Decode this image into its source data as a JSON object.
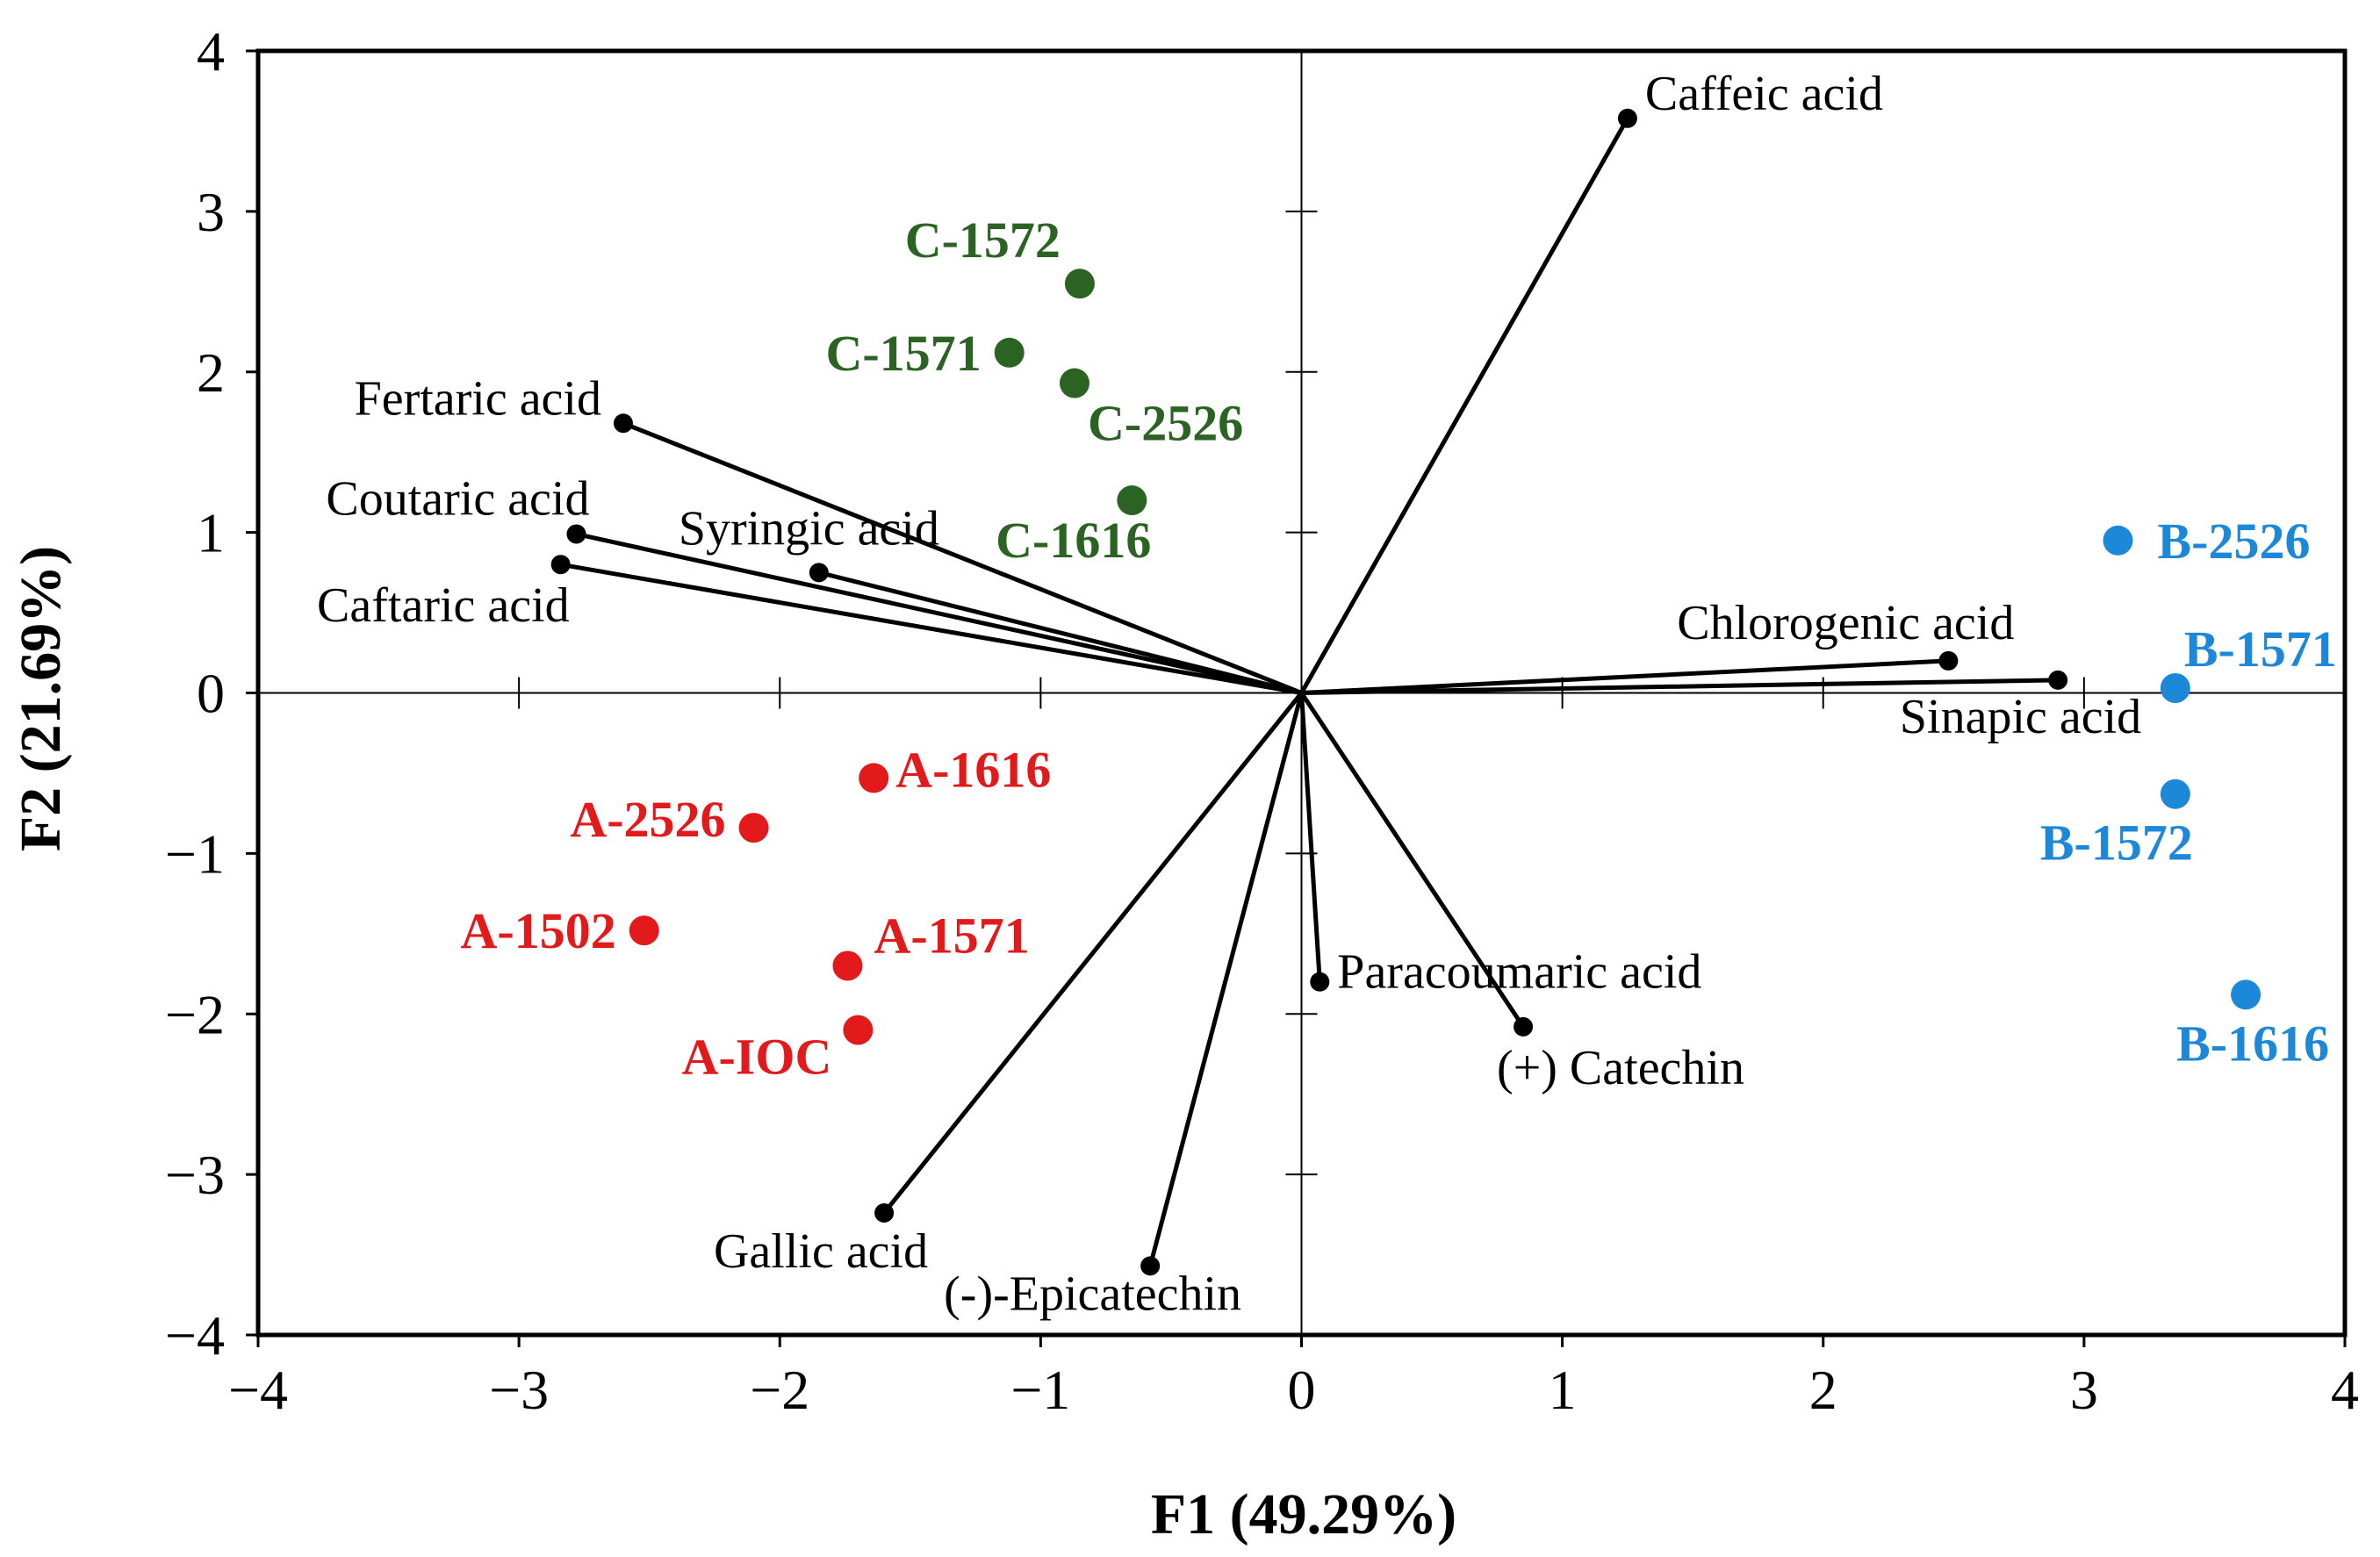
{
  "chart_data": {
    "type": "scatter",
    "subtype": "pca-biplot",
    "xlabel": "F1 (49.29%)",
    "ylabel": "F2 (21.69%)",
    "xlim": [
      -4,
      4
    ],
    "ylim": [
      -4,
      4
    ],
    "x_ticks": [
      "−4",
      "−3",
      "−2",
      "−1",
      "0",
      "1",
      "2",
      "3",
      "4"
    ],
    "y_ticks": [
      "4",
      "3",
      "2",
      "1",
      "0",
      "−1",
      "−2",
      "−3",
      "−4"
    ],
    "grid": false,
    "zero_lines": true,
    "variables": [
      {
        "name": "Caffeic acid",
        "x": 1.25,
        "y": 3.58
      },
      {
        "name": "Fertaric acid",
        "x": -2.6,
        "y": 1.68
      },
      {
        "name": "Coutaric acid",
        "x": -2.78,
        "y": 0.99
      },
      {
        "name": "Syringic acid",
        "x": -1.85,
        "y": 0.75
      },
      {
        "name": "Caftaric acid",
        "x": -2.84,
        "y": 0.8
      },
      {
        "name": "Chlorogenic acid",
        "x": 2.48,
        "y": 0.2
      },
      {
        "name": "Sinapic acid",
        "x": 2.9,
        "y": 0.08
      },
      {
        "name": "Paracoumaric acid",
        "x": 0.07,
        "y": -1.8
      },
      {
        "name": "(+) Catechin",
        "x": 0.85,
        "y": -2.08
      },
      {
        "name": "Gallic acid",
        "x": -1.6,
        "y": -3.24
      },
      {
        "name": "(-)-Epicatechin",
        "x": -0.58,
        "y": -3.57
      }
    ],
    "series": [
      {
        "group": "A",
        "color": "#e31a1c",
        "points": [
          {
            "name": "A-1616",
            "x": -1.64,
            "y": -0.53
          },
          {
            "name": "A-2526",
            "x": -2.1,
            "y": -0.84
          },
          {
            "name": "A-1502",
            "x": -2.52,
            "y": -1.48
          },
          {
            "name": "A-1571",
            "x": -1.74,
            "y": -1.7
          },
          {
            "name": "A-IOC",
            "x": -1.7,
            "y": -2.1
          }
        ]
      },
      {
        "group": "B",
        "color": "#1e88d8",
        "points": [
          {
            "name": "B-2526",
            "x": 3.13,
            "y": 0.95
          },
          {
            "name": "B-1571",
            "x": 3.35,
            "y": 0.03
          },
          {
            "name": "B-1572",
            "x": 3.35,
            "y": -0.63
          },
          {
            "name": "B-1616",
            "x": 3.62,
            "y": -1.88
          }
        ]
      },
      {
        "group": "C",
        "color": "#2b6323",
        "points": [
          {
            "name": "C-1572",
            "x": -0.85,
            "y": 2.55
          },
          {
            "name": "C-1571",
            "x": -1.12,
            "y": 2.12
          },
          {
            "name": "C-2526",
            "x": -0.87,
            "y": 1.93
          },
          {
            "name": "C-1616",
            "x": -0.65,
            "y": 1.2
          }
        ]
      }
    ]
  }
}
